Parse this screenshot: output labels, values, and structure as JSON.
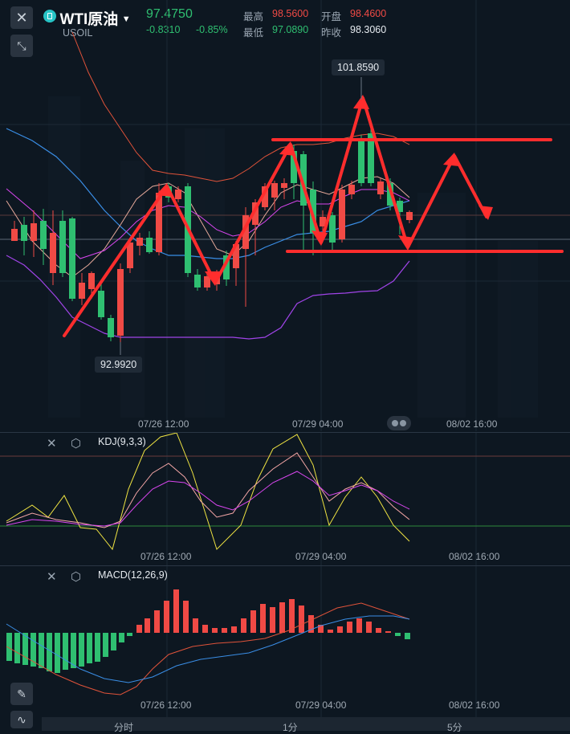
{
  "header": {
    "symbol": "WTI原油",
    "code": "USOIL",
    "price": "97.4750",
    "change": "-0.8310",
    "change_pct": "-0.85%",
    "high_label": "最高",
    "high_value": "98.5600",
    "open_label": "开盘",
    "open_value": "98.4600",
    "low_label": "最低",
    "low_value": "97.0890",
    "prev_close_label": "昨收",
    "prev_close_value": "98.3060"
  },
  "main_chart": {
    "peak_tag": "101.8590",
    "trough_tag": "92.9920",
    "time_labels": [
      "07/26 12:00",
      "07/29 04:00",
      "08/02 16:00"
    ]
  },
  "kdj_panel": {
    "label": "KDJ(9,3,3)",
    "time_labels": [
      "07/26 12:00",
      "07/29 04:00",
      "08/02 16:00"
    ]
  },
  "macd_panel": {
    "label": "MACD(12,26,9)",
    "time_labels": [
      "07/26 12:00",
      "07/29 04:00",
      "08/02 16:00"
    ]
  },
  "bottom_tabs": [
    "分时",
    "1分",
    "5分"
  ],
  "colors": {
    "up": "#f04a45",
    "down": "#2fbf71",
    "background": "#0d1721",
    "annotation": "#ff3030"
  },
  "icons": [
    "close-icon",
    "collapse-icon",
    "symbol-logo-icon",
    "dropdown-icon",
    "settings-icon",
    "pen-icon",
    "indicator-icon"
  ]
}
